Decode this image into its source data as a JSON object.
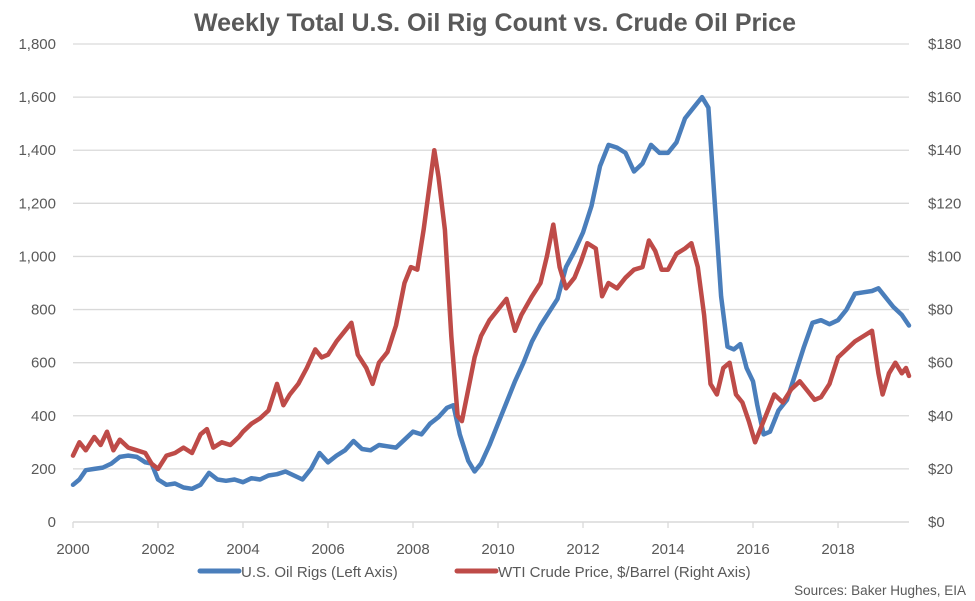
{
  "chart_data": {
    "type": "line",
    "title": "Weekly Total U.S. Oil Rig Count vs. Crude Oil Price",
    "source": "Sources: Baker Hughes, EIA",
    "xlabel": "",
    "x_ticks": [
      "2000",
      "2002",
      "2004",
      "2006",
      "2008",
      "2010",
      "2012",
      "2014",
      "2016",
      "2018"
    ],
    "xlim": [
      2000,
      2019.67
    ],
    "y_left": {
      "label": "U.S. Oil Rigs",
      "lim": [
        0,
        1800
      ],
      "ticks": [
        "0",
        "200",
        "400",
        "600",
        "800",
        "1,000",
        "1,200",
        "1,400",
        "1,600",
        "1,800"
      ]
    },
    "y_right": {
      "label": "WTI Crude Price, $/Barrel",
      "lim": [
        0,
        180
      ],
      "ticks": [
        "$0",
        "$20",
        "$40",
        "$60",
        "$80",
        "$100",
        "$120",
        "$140",
        "$160",
        "$180"
      ]
    },
    "grid": true,
    "legend_position": "bottom",
    "series": [
      {
        "name": "U.S. Oil Rigs (Left Axis)",
        "axis": "left",
        "color": "#4A7EBB",
        "points": [
          [
            2000.0,
            140
          ],
          [
            2000.15,
            160
          ],
          [
            2000.3,
            195
          ],
          [
            2000.5,
            200
          ],
          [
            2000.7,
            205
          ],
          [
            2000.9,
            220
          ],
          [
            2001.1,
            245
          ],
          [
            2001.3,
            250
          ],
          [
            2001.5,
            245
          ],
          [
            2001.7,
            225
          ],
          [
            2001.85,
            220
          ],
          [
            2002.0,
            160
          ],
          [
            2002.2,
            140
          ],
          [
            2002.4,
            145
          ],
          [
            2002.6,
            130
          ],
          [
            2002.8,
            125
          ],
          [
            2003.0,
            140
          ],
          [
            2003.2,
            185
          ],
          [
            2003.4,
            160
          ],
          [
            2003.6,
            155
          ],
          [
            2003.8,
            160
          ],
          [
            2004.0,
            150
          ],
          [
            2004.2,
            165
          ],
          [
            2004.4,
            160
          ],
          [
            2004.6,
            175
          ],
          [
            2004.8,
            180
          ],
          [
            2005.0,
            190
          ],
          [
            2005.2,
            175
          ],
          [
            2005.4,
            160
          ],
          [
            2005.6,
            200
          ],
          [
            2005.8,
            260
          ],
          [
            2006.0,
            225
          ],
          [
            2006.2,
            250
          ],
          [
            2006.4,
            270
          ],
          [
            2006.6,
            305
          ],
          [
            2006.8,
            275
          ],
          [
            2007.0,
            270
          ],
          [
            2007.2,
            290
          ],
          [
            2007.4,
            285
          ],
          [
            2007.6,
            280
          ],
          [
            2007.8,
            310
          ],
          [
            2008.0,
            340
          ],
          [
            2008.2,
            330
          ],
          [
            2008.4,
            370
          ],
          [
            2008.6,
            395
          ],
          [
            2008.8,
            430
          ],
          [
            2008.95,
            440
          ],
          [
            2009.1,
            330
          ],
          [
            2009.3,
            230
          ],
          [
            2009.45,
            190
          ],
          [
            2009.6,
            220
          ],
          [
            2009.8,
            290
          ],
          [
            2010.0,
            370
          ],
          [
            2010.2,
            450
          ],
          [
            2010.4,
            530
          ],
          [
            2010.6,
            600
          ],
          [
            2010.8,
            680
          ],
          [
            2011.0,
            740
          ],
          [
            2011.2,
            790
          ],
          [
            2011.4,
            840
          ],
          [
            2011.6,
            960
          ],
          [
            2011.8,
            1020
          ],
          [
            2012.0,
            1090
          ],
          [
            2012.2,
            1190
          ],
          [
            2012.4,
            1340
          ],
          [
            2012.6,
            1420
          ],
          [
            2012.8,
            1410
          ],
          [
            2013.0,
            1390
          ],
          [
            2013.2,
            1320
          ],
          [
            2013.4,
            1350
          ],
          [
            2013.6,
            1420
          ],
          [
            2013.8,
            1390
          ],
          [
            2014.0,
            1390
          ],
          [
            2014.2,
            1430
          ],
          [
            2014.4,
            1520
          ],
          [
            2014.6,
            1560
          ],
          [
            2014.8,
            1600
          ],
          [
            2014.95,
            1560
          ],
          [
            2015.1,
            1200
          ],
          [
            2015.25,
            850
          ],
          [
            2015.4,
            660
          ],
          [
            2015.55,
            650
          ],
          [
            2015.7,
            670
          ],
          [
            2015.85,
            580
          ],
          [
            2016.0,
            530
          ],
          [
            2016.1,
            440
          ],
          [
            2016.25,
            330
          ],
          [
            2016.4,
            340
          ],
          [
            2016.6,
            420
          ],
          [
            2016.8,
            460
          ],
          [
            2017.0,
            560
          ],
          [
            2017.2,
            660
          ],
          [
            2017.4,
            750
          ],
          [
            2017.6,
            760
          ],
          [
            2017.8,
            745
          ],
          [
            2018.0,
            760
          ],
          [
            2018.2,
            800
          ],
          [
            2018.4,
            860
          ],
          [
            2018.6,
            865
          ],
          [
            2018.8,
            870
          ],
          [
            2018.95,
            880
          ],
          [
            2019.1,
            850
          ],
          [
            2019.3,
            810
          ],
          [
            2019.5,
            780
          ],
          [
            2019.67,
            740
          ]
        ]
      },
      {
        "name": "WTI Crude Price, $/Barrel (Right Axis)",
        "axis": "right",
        "color": "#BE4B48",
        "points": [
          [
            2000.0,
            25
          ],
          [
            2000.15,
            30
          ],
          [
            2000.3,
            27
          ],
          [
            2000.5,
            32
          ],
          [
            2000.65,
            29
          ],
          [
            2000.8,
            34
          ],
          [
            2000.95,
            27
          ],
          [
            2001.1,
            31
          ],
          [
            2001.3,
            28
          ],
          [
            2001.5,
            27
          ],
          [
            2001.7,
            26
          ],
          [
            2001.85,
            22
          ],
          [
            2002.0,
            20
          ],
          [
            2002.2,
            25
          ],
          [
            2002.4,
            26
          ],
          [
            2002.6,
            28
          ],
          [
            2002.8,
            26
          ],
          [
            2003.0,
            33
          ],
          [
            2003.15,
            35
          ],
          [
            2003.3,
            28
          ],
          [
            2003.5,
            30
          ],
          [
            2003.7,
            29
          ],
          [
            2003.9,
            32
          ],
          [
            2004.0,
            34
          ],
          [
            2004.2,
            37
          ],
          [
            2004.4,
            39
          ],
          [
            2004.6,
            42
          ],
          [
            2004.8,
            52
          ],
          [
            2004.95,
            44
          ],
          [
            2005.1,
            48
          ],
          [
            2005.3,
            52
          ],
          [
            2005.5,
            58
          ],
          [
            2005.7,
            65
          ],
          [
            2005.85,
            62
          ],
          [
            2006.0,
            63
          ],
          [
            2006.2,
            68
          ],
          [
            2006.4,
            72
          ],
          [
            2006.55,
            75
          ],
          [
            2006.7,
            63
          ],
          [
            2006.9,
            58
          ],
          [
            2007.05,
            52
          ],
          [
            2007.2,
            60
          ],
          [
            2007.4,
            64
          ],
          [
            2007.6,
            74
          ],
          [
            2007.8,
            90
          ],
          [
            2007.95,
            96
          ],
          [
            2008.1,
            95
          ],
          [
            2008.25,
            110
          ],
          [
            2008.4,
            128
          ],
          [
            2008.5,
            140
          ],
          [
            2008.6,
            130
          ],
          [
            2008.75,
            110
          ],
          [
            2008.9,
            70
          ],
          [
            2009.05,
            40
          ],
          [
            2009.15,
            38
          ],
          [
            2009.3,
            50
          ],
          [
            2009.45,
            62
          ],
          [
            2009.6,
            70
          ],
          [
            2009.8,
            76
          ],
          [
            2010.0,
            80
          ],
          [
            2010.2,
            84
          ],
          [
            2010.4,
            72
          ],
          [
            2010.55,
            78
          ],
          [
            2010.8,
            85
          ],
          [
            2011.0,
            90
          ],
          [
            2011.15,
            100
          ],
          [
            2011.3,
            112
          ],
          [
            2011.45,
            96
          ],
          [
            2011.6,
            88
          ],
          [
            2011.8,
            92
          ],
          [
            2011.95,
            98
          ],
          [
            2012.1,
            105
          ],
          [
            2012.3,
            103
          ],
          [
            2012.45,
            85
          ],
          [
            2012.6,
            90
          ],
          [
            2012.8,
            88
          ],
          [
            2013.0,
            92
          ],
          [
            2013.2,
            95
          ],
          [
            2013.4,
            96
          ],
          [
            2013.55,
            106
          ],
          [
            2013.7,
            102
          ],
          [
            2013.85,
            95
          ],
          [
            2014.0,
            95
          ],
          [
            2014.2,
            101
          ],
          [
            2014.4,
            103
          ],
          [
            2014.55,
            105
          ],
          [
            2014.7,
            96
          ],
          [
            2014.85,
            78
          ],
          [
            2015.0,
            52
          ],
          [
            2015.15,
            48
          ],
          [
            2015.3,
            58
          ],
          [
            2015.45,
            60
          ],
          [
            2015.6,
            48
          ],
          [
            2015.75,
            45
          ],
          [
            2015.9,
            38
          ],
          [
            2016.05,
            30
          ],
          [
            2016.2,
            36
          ],
          [
            2016.35,
            42
          ],
          [
            2016.5,
            48
          ],
          [
            2016.7,
            45
          ],
          [
            2016.9,
            50
          ],
          [
            2017.1,
            53
          ],
          [
            2017.3,
            49
          ],
          [
            2017.45,
            46
          ],
          [
            2017.6,
            47
          ],
          [
            2017.8,
            52
          ],
          [
            2018.0,
            62
          ],
          [
            2018.2,
            65
          ],
          [
            2018.4,
            68
          ],
          [
            2018.6,
            70
          ],
          [
            2018.8,
            72
          ],
          [
            2018.95,
            56
          ],
          [
            2019.05,
            48
          ],
          [
            2019.2,
            56
          ],
          [
            2019.35,
            60
          ],
          [
            2019.5,
            56
          ],
          [
            2019.6,
            58
          ],
          [
            2019.67,
            55
          ]
        ]
      }
    ]
  }
}
